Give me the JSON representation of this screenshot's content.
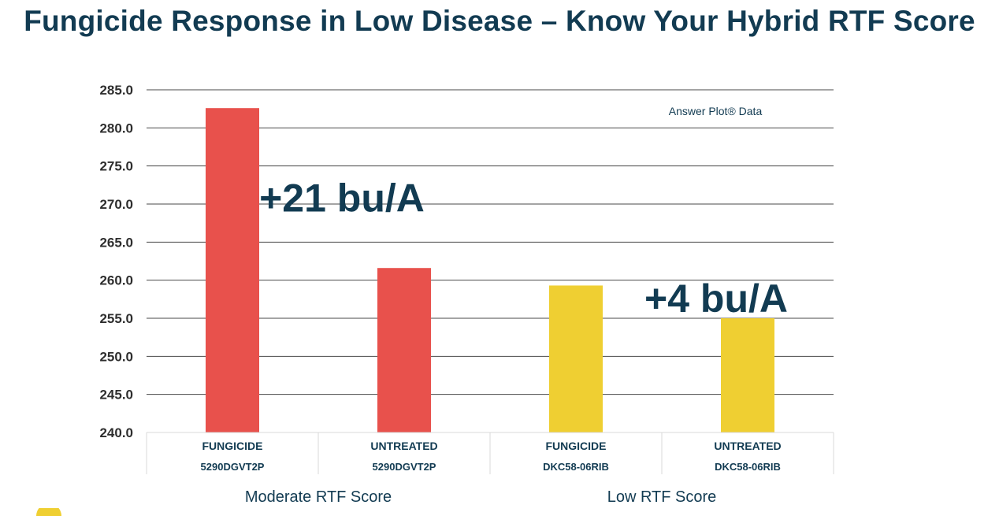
{
  "title": "Fungicide Response in Low Disease – Know Your Hybrid RTF Score",
  "colors": {
    "title": "#123b52",
    "fungicide_moderate": "#e8514c",
    "untreated_moderate": "#e8514c",
    "low_rtf": "#efcf32",
    "gridline": "#4a4a4a",
    "axis_text": "#2e2e2e",
    "category_text": "#123b52"
  },
  "chart_data": {
    "type": "bar",
    "source_note": "Answer Plot® Data",
    "ylim": [
      240,
      285
    ],
    "yticks": [
      "240.0",
      "245.0",
      "250.0",
      "255.0",
      "260.0",
      "265.0",
      "270.0",
      "275.0",
      "280.0",
      "285.0"
    ],
    "grid": true,
    "categories": [
      {
        "line1": "FUNGICIDE",
        "line2": "5290DGVT2P",
        "value": 282.6,
        "color": "#e8514c"
      },
      {
        "line1": "UNTREATED",
        "line2": "5290DGVT2P",
        "value": 261.6,
        "color": "#e8514c"
      },
      {
        "line1": "FUNGICIDE",
        "line2": "DKC58-06RIB",
        "value": 259.3,
        "color": "#efcf32"
      },
      {
        "line1": "UNTREATED",
        "line2": "DKC58-06RIB",
        "value": 255.0,
        "color": "#efcf32"
      }
    ],
    "groups": [
      {
        "label": "Moderate RTF Score",
        "span": [
          0,
          1
        ]
      },
      {
        "label": "Low RTF Score",
        "span": [
          2,
          3
        ]
      }
    ],
    "annotations": [
      {
        "text": "+21 bu/A",
        "group": 0
      },
      {
        "text": "+4 bu/A",
        "group": 1
      }
    ]
  }
}
